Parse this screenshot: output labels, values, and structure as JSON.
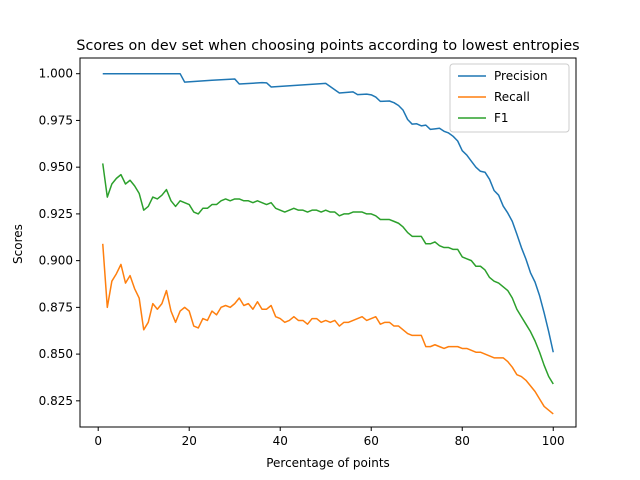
{
  "chart_data": {
    "type": "line",
    "title": "Scores on dev set when choosing points according to lowest entropies",
    "xlabel": "Percentage of points",
    "ylabel": "Scores",
    "xlim": [
      -4,
      105
    ],
    "ylim": [
      0.811,
      1.0084
    ],
    "xticks": [
      0,
      20,
      40,
      60,
      80,
      100
    ],
    "yticks": [
      0.825,
      0.85,
      0.875,
      0.9,
      0.925,
      0.95,
      0.975,
      1.0
    ],
    "xtick_labels": [
      "0",
      "20",
      "40",
      "60",
      "80",
      "100"
    ],
    "ytick_labels": [
      "0.825",
      "0.850",
      "0.875",
      "0.900",
      "0.925",
      "0.950",
      "0.975",
      "1.000"
    ],
    "grid": false,
    "legend_position": "top-right",
    "series": [
      {
        "name": "Precision",
        "color": "#1f77b4",
        "points": [
          [
            1,
            1.0
          ],
          [
            18,
            1.0
          ],
          [
            19,
            0.9955
          ],
          [
            25,
            0.9965
          ],
          [
            30,
            0.9972
          ],
          [
            31,
            0.9945
          ],
          [
            36,
            0.9952
          ],
          [
            37,
            0.9951
          ],
          [
            38,
            0.9929
          ],
          [
            50,
            0.9948
          ],
          [
            53,
            0.9897
          ],
          [
            56,
            0.9903
          ],
          [
            57,
            0.9888
          ],
          [
            59,
            0.9891
          ],
          [
            60,
            0.9887
          ],
          [
            61,
            0.9875
          ],
          [
            62,
            0.9852
          ],
          [
            64,
            0.9854
          ],
          [
            65,
            0.9845
          ],
          [
            66,
            0.983
          ],
          [
            67,
            0.9805
          ],
          [
            68,
            0.9755
          ],
          [
            69,
            0.973
          ],
          [
            70,
            0.9732
          ],
          [
            71,
            0.9721
          ],
          [
            72,
            0.9725
          ],
          [
            73,
            0.9702
          ],
          [
            74,
            0.9705
          ],
          [
            75,
            0.9708
          ],
          [
            76,
            0.9692
          ],
          [
            77,
            0.9683
          ],
          [
            78,
            0.9665
          ],
          [
            79,
            0.964
          ],
          [
            80,
            0.9588
          ],
          [
            81,
            0.9565
          ],
          [
            82,
            0.9532
          ],
          [
            83,
            0.95
          ],
          [
            84,
            0.9478
          ],
          [
            85,
            0.9473
          ],
          [
            86,
            0.9435
          ],
          [
            87,
            0.9375
          ],
          [
            88,
            0.935
          ],
          [
            89,
            0.9292
          ],
          [
            90,
            0.9255
          ],
          [
            91,
            0.921
          ],
          [
            92,
            0.9142
          ],
          [
            93,
            0.907
          ],
          [
            94,
            0.9008
          ],
          [
            95,
            0.8935
          ],
          [
            96,
            0.8885
          ],
          [
            97,
            0.8812
          ],
          [
            98,
            0.872
          ],
          [
            99,
            0.862
          ],
          [
            100,
            0.851
          ]
        ]
      },
      {
        "name": "Recall",
        "color": "#ff7f0e",
        "points": [
          [
            1,
            0.909
          ],
          [
            2,
            0.875
          ],
          [
            3,
            0.889
          ],
          [
            4,
            0.893
          ],
          [
            5,
            0.898
          ],
          [
            6,
            0.888
          ],
          [
            7,
            0.892
          ],
          [
            8,
            0.885
          ],
          [
            9,
            0.88
          ],
          [
            10,
            0.863
          ],
          [
            11,
            0.867
          ],
          [
            12,
            0.877
          ],
          [
            13,
            0.874
          ],
          [
            14,
            0.877
          ],
          [
            15,
            0.884
          ],
          [
            16,
            0.873
          ],
          [
            17,
            0.867
          ],
          [
            18,
            0.873
          ],
          [
            19,
            0.875
          ],
          [
            20,
            0.873
          ],
          [
            21,
            0.865
          ],
          [
            22,
            0.864
          ],
          [
            23,
            0.869
          ],
          [
            24,
            0.868
          ],
          [
            25,
            0.873
          ],
          [
            26,
            0.871
          ],
          [
            27,
            0.875
          ],
          [
            28,
            0.876
          ],
          [
            29,
            0.875
          ],
          [
            30,
            0.877
          ],
          [
            31,
            0.88
          ],
          [
            32,
            0.876
          ],
          [
            33,
            0.877
          ],
          [
            34,
            0.874
          ],
          [
            35,
            0.878
          ],
          [
            36,
            0.874
          ],
          [
            37,
            0.874
          ],
          [
            38,
            0.876
          ],
          [
            39,
            0.87
          ],
          [
            40,
            0.869
          ],
          [
            41,
            0.867
          ],
          [
            42,
            0.868
          ],
          [
            43,
            0.87
          ],
          [
            44,
            0.868
          ],
          [
            45,
            0.868
          ],
          [
            46,
            0.866
          ],
          [
            47,
            0.869
          ],
          [
            48,
            0.869
          ],
          [
            49,
            0.867
          ],
          [
            50,
            0.868
          ],
          [
            51,
            0.867
          ],
          [
            52,
            0.868
          ],
          [
            53,
            0.865
          ],
          [
            54,
            0.867
          ],
          [
            55,
            0.867
          ],
          [
            56,
            0.868
          ],
          [
            57,
            0.869
          ],
          [
            58,
            0.87
          ],
          [
            59,
            0.868
          ],
          [
            60,
            0.869
          ],
          [
            61,
            0.87
          ],
          [
            62,
            0.866
          ],
          [
            63,
            0.867
          ],
          [
            64,
            0.867
          ],
          [
            65,
            0.865
          ],
          [
            66,
            0.865
          ],
          [
            67,
            0.863
          ],
          [
            68,
            0.861
          ],
          [
            69,
            0.86
          ],
          [
            70,
            0.86
          ],
          [
            71,
            0.86
          ],
          [
            72,
            0.854
          ],
          [
            73,
            0.854
          ],
          [
            74,
            0.855
          ],
          [
            75,
            0.854
          ],
          [
            76,
            0.853
          ],
          [
            77,
            0.854
          ],
          [
            78,
            0.854
          ],
          [
            79,
            0.854
          ],
          [
            80,
            0.853
          ],
          [
            81,
            0.853
          ],
          [
            82,
            0.852
          ],
          [
            83,
            0.851
          ],
          [
            84,
            0.851
          ],
          [
            85,
            0.85
          ],
          [
            86,
            0.849
          ],
          [
            87,
            0.848
          ],
          [
            88,
            0.848
          ],
          [
            89,
            0.848
          ],
          [
            90,
            0.846
          ],
          [
            91,
            0.843
          ],
          [
            92,
            0.839
          ],
          [
            93,
            0.838
          ],
          [
            94,
            0.836
          ],
          [
            95,
            0.833
          ],
          [
            96,
            0.83
          ],
          [
            97,
            0.826
          ],
          [
            98,
            0.822
          ],
          [
            99,
            0.82
          ],
          [
            100,
            0.818
          ]
        ]
      },
      {
        "name": "F1",
        "color": "#2ca02c",
        "points": [
          [
            1,
            0.952
          ],
          [
            2,
            0.934
          ],
          [
            3,
            0.941
          ],
          [
            4,
            0.944
          ],
          [
            5,
            0.946
          ],
          [
            6,
            0.941
          ],
          [
            7,
            0.943
          ],
          [
            8,
            0.94
          ],
          [
            9,
            0.936
          ],
          [
            10,
            0.927
          ],
          [
            11,
            0.929
          ],
          [
            12,
            0.934
          ],
          [
            13,
            0.933
          ],
          [
            14,
            0.935
          ],
          [
            15,
            0.938
          ],
          [
            16,
            0.932
          ],
          [
            17,
            0.929
          ],
          [
            18,
            0.932
          ],
          [
            19,
            0.931
          ],
          [
            20,
            0.93
          ],
          [
            21,
            0.926
          ],
          [
            22,
            0.925
          ],
          [
            23,
            0.928
          ],
          [
            24,
            0.928
          ],
          [
            25,
            0.93
          ],
          [
            26,
            0.93
          ],
          [
            27,
            0.932
          ],
          [
            28,
            0.933
          ],
          [
            29,
            0.932
          ],
          [
            30,
            0.933
          ],
          [
            31,
            0.933
          ],
          [
            32,
            0.932
          ],
          [
            33,
            0.932
          ],
          [
            34,
            0.931
          ],
          [
            35,
            0.932
          ],
          [
            36,
            0.931
          ],
          [
            37,
            0.93
          ],
          [
            38,
            0.931
          ],
          [
            39,
            0.928
          ],
          [
            40,
            0.927
          ],
          [
            41,
            0.926
          ],
          [
            42,
            0.927
          ],
          [
            43,
            0.928
          ],
          [
            44,
            0.927
          ],
          [
            45,
            0.927
          ],
          [
            46,
            0.926
          ],
          [
            47,
            0.927
          ],
          [
            48,
            0.927
          ],
          [
            49,
            0.926
          ],
          [
            50,
            0.927
          ],
          [
            51,
            0.926
          ],
          [
            52,
            0.926
          ],
          [
            53,
            0.924
          ],
          [
            54,
            0.925
          ],
          [
            55,
            0.925
          ],
          [
            56,
            0.926
          ],
          [
            57,
            0.926
          ],
          [
            58,
            0.926
          ],
          [
            59,
            0.925
          ],
          [
            60,
            0.925
          ],
          [
            61,
            0.924
          ],
          [
            62,
            0.922
          ],
          [
            63,
            0.922
          ],
          [
            64,
            0.922
          ],
          [
            65,
            0.921
          ],
          [
            66,
            0.92
          ],
          [
            67,
            0.918
          ],
          [
            68,
            0.915
          ],
          [
            69,
            0.913
          ],
          [
            70,
            0.913
          ],
          [
            71,
            0.913
          ],
          [
            72,
            0.909
          ],
          [
            73,
            0.909
          ],
          [
            74,
            0.91
          ],
          [
            75,
            0.908
          ],
          [
            76,
            0.907
          ],
          [
            77,
            0.907
          ],
          [
            78,
            0.906
          ],
          [
            79,
            0.906
          ],
          [
            80,
            0.902
          ],
          [
            81,
            0.901
          ],
          [
            82,
            0.9
          ],
          [
            83,
            0.897
          ],
          [
            84,
            0.897
          ],
          [
            85,
            0.895
          ],
          [
            86,
            0.891
          ],
          [
            87,
            0.889
          ],
          [
            88,
            0.888
          ],
          [
            89,
            0.886
          ],
          [
            90,
            0.884
          ],
          [
            91,
            0.88
          ],
          [
            92,
            0.874
          ],
          [
            93,
            0.87
          ],
          [
            94,
            0.866
          ],
          [
            95,
            0.862
          ],
          [
            96,
            0.857
          ],
          [
            97,
            0.851
          ],
          [
            98,
            0.844
          ],
          [
            99,
            0.838
          ],
          [
            100,
            0.834
          ]
        ]
      }
    ]
  }
}
